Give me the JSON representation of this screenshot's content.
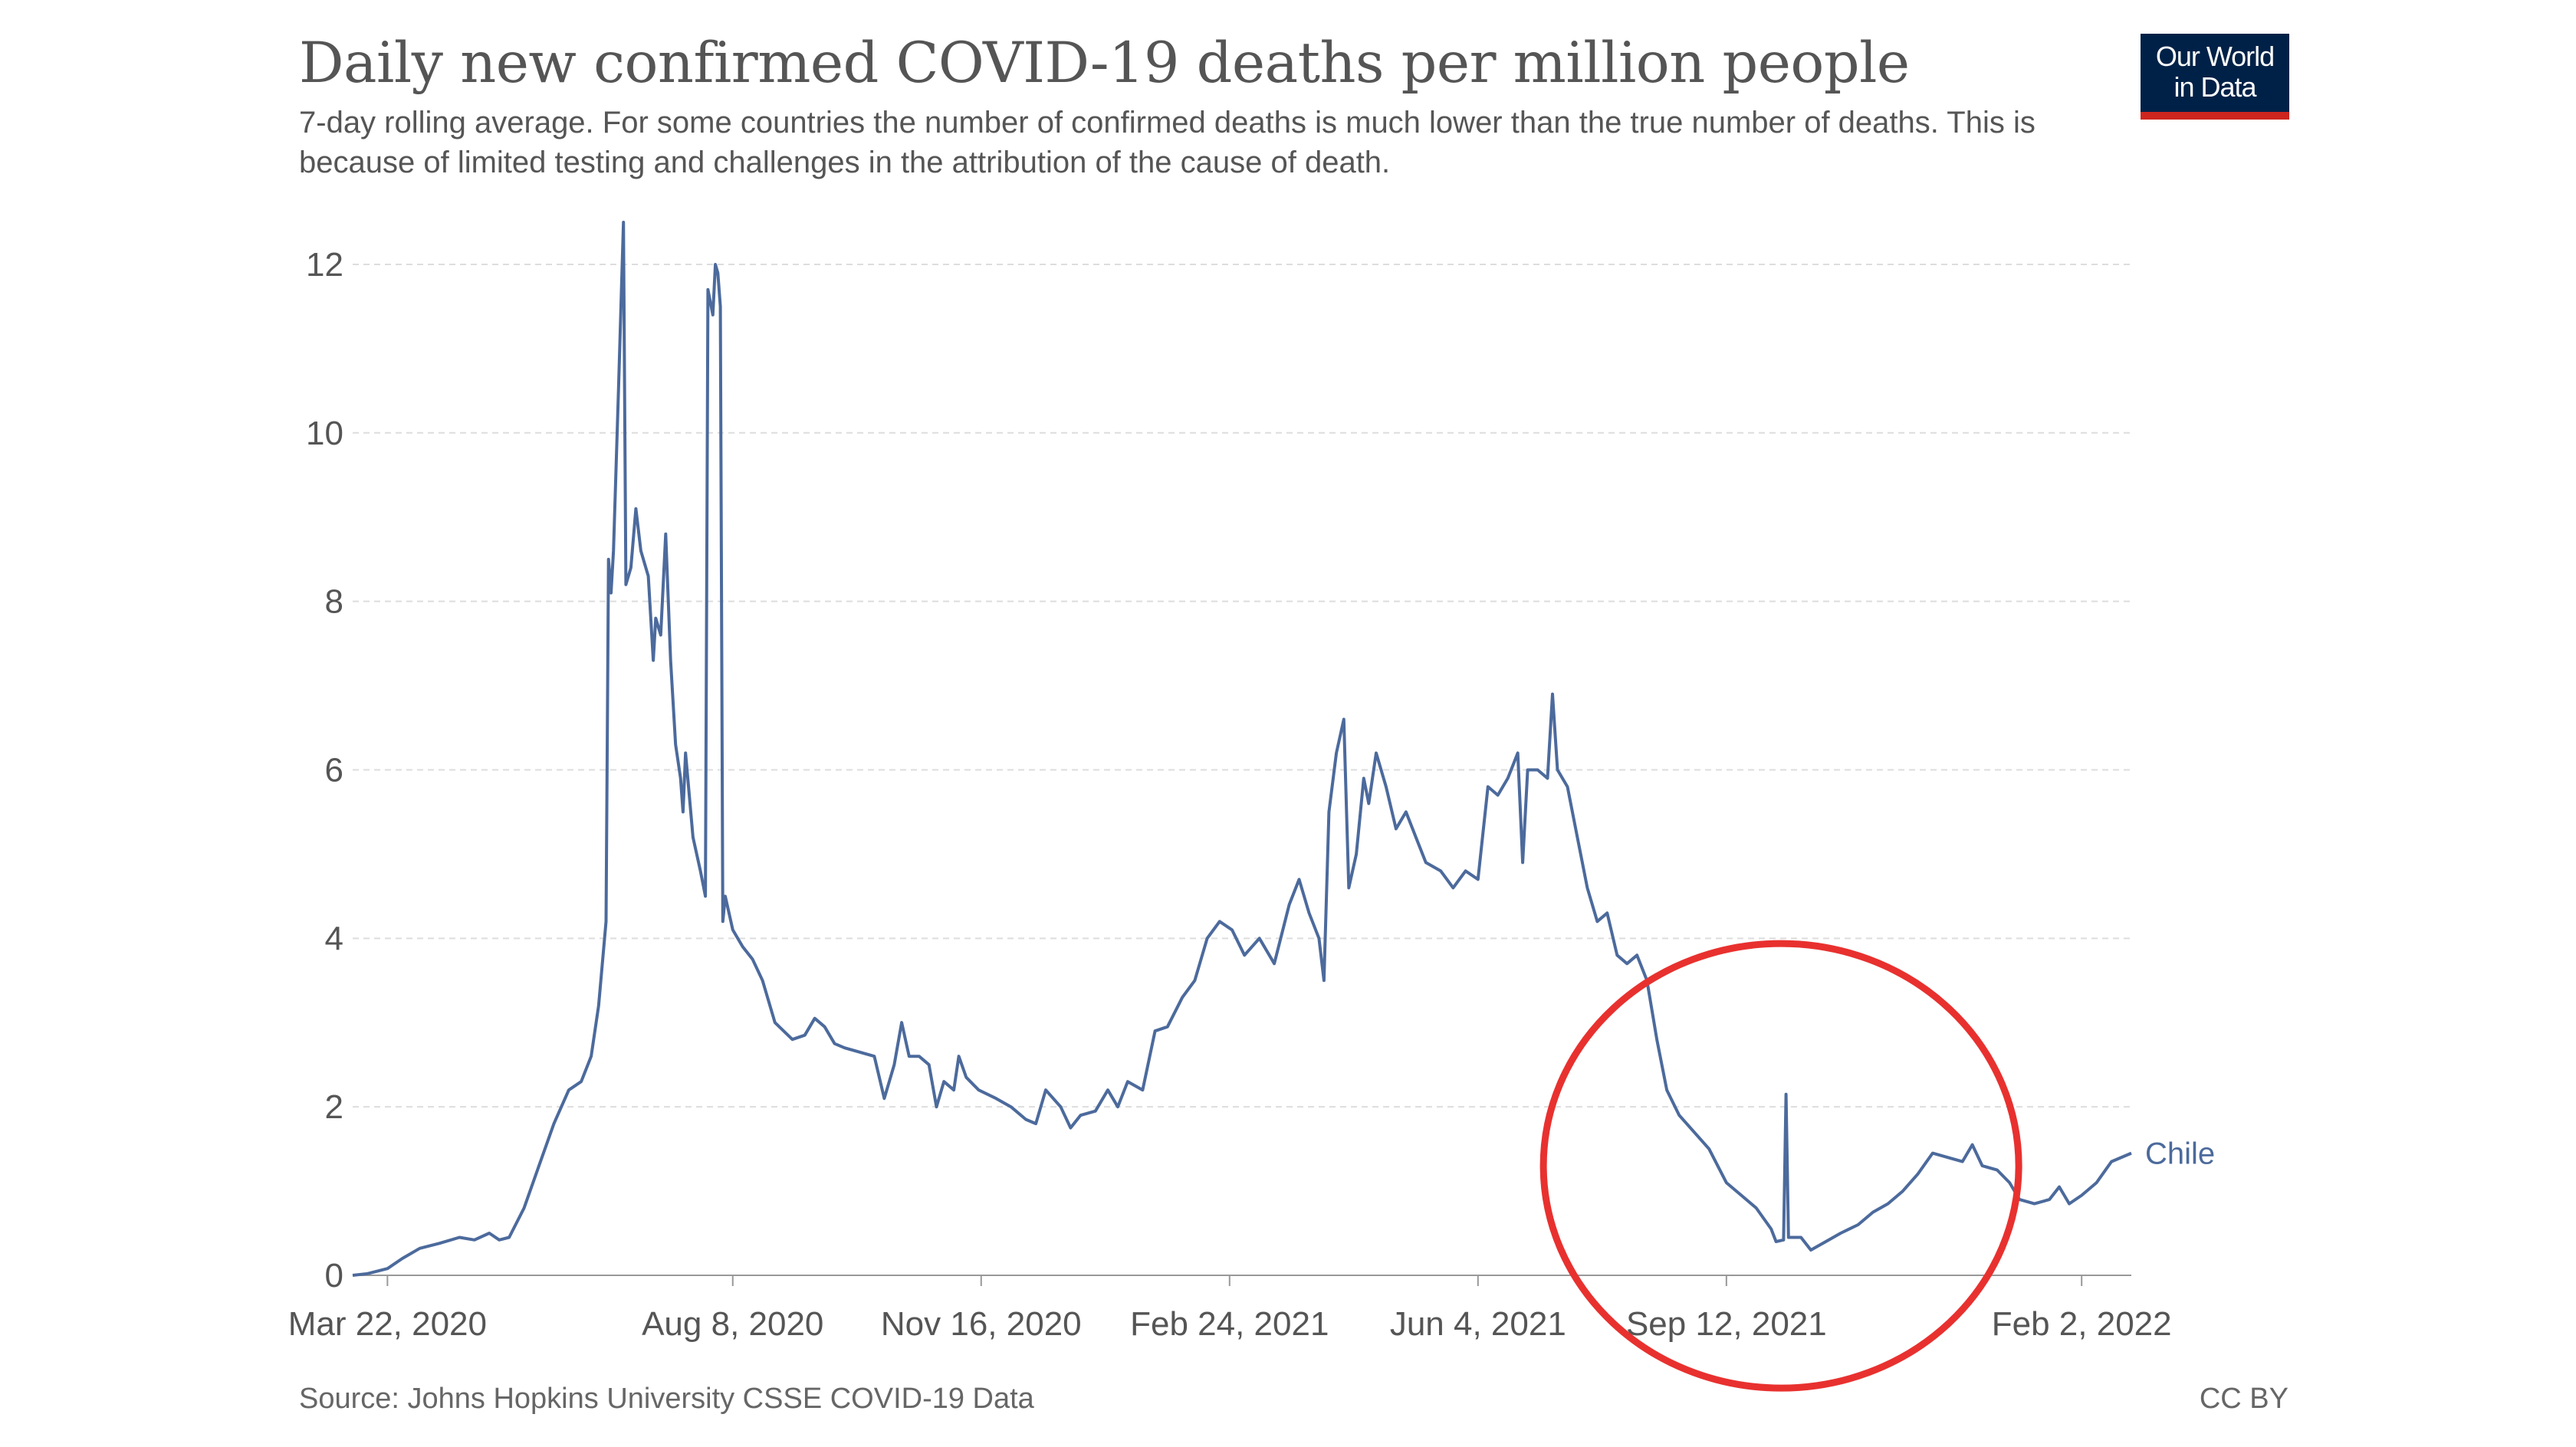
{
  "header": {
    "title": "Daily new confirmed COVID-19 deaths per million people",
    "subtitle": "7-day rolling average. For some countries the number of confirmed deaths is much lower than the true number of deaths. This is because of limited testing and challenges in the attribution of the cause of death.",
    "logo_line1": "Our World",
    "logo_line2": "in Data"
  },
  "footer": {
    "source": "Source: Johns Hopkins University CSSE COVID-19 Data",
    "license": "CC BY"
  },
  "colors": {
    "series": "#4c6a9c",
    "gridline": "#dddddd",
    "annotation_circle": "#e8312f",
    "logo_bg": "#002147",
    "logo_bar": "#ce261e"
  },
  "chart_data": {
    "type": "line",
    "title": "Daily new confirmed COVID-19 deaths per million people",
    "ylim": [
      0,
      12.5
    ],
    "yticks": [
      0,
      2,
      4,
      6,
      8,
      10,
      12
    ],
    "grid": "horizontal dashed",
    "x_range": [
      "2020-03-08",
      "2022-02-22"
    ],
    "xticks": [
      {
        "date": "2020-03-22",
        "label": "Mar 22, 2020"
      },
      {
        "date": "2020-08-08",
        "label": "Aug 8, 2020"
      },
      {
        "date": "2020-11-16",
        "label": "Nov 16, 2020"
      },
      {
        "date": "2021-02-24",
        "label": "Feb 24, 2021"
      },
      {
        "date": "2021-06-04",
        "label": "Jun 4, 2021"
      },
      {
        "date": "2021-09-12",
        "label": "Sep 12, 2021"
      },
      {
        "date": "2022-02-02",
        "label": "Feb 2, 2022"
      }
    ],
    "annotation": {
      "type": "circle",
      "note": "",
      "center_date": "2021-10-04",
      "center_value": 1.3
    },
    "series": [
      {
        "name": "Chile",
        "points": [
          [
            "2020-03-08",
            0
          ],
          [
            "2020-03-14",
            0.02
          ],
          [
            "2020-03-22",
            0.08
          ],
          [
            "2020-03-28",
            0.2
          ],
          [
            "2020-04-04",
            0.32
          ],
          [
            "2020-04-12",
            0.38
          ],
          [
            "2020-04-20",
            0.45
          ],
          [
            "2020-04-26",
            0.42
          ],
          [
            "2020-05-02",
            0.5
          ],
          [
            "2020-05-06",
            0.42
          ],
          [
            "2020-05-10",
            0.45
          ],
          [
            "2020-05-16",
            0.8
          ],
          [
            "2020-05-22",
            1.3
          ],
          [
            "2020-05-28",
            1.8
          ],
          [
            "2020-06-03",
            2.2
          ],
          [
            "2020-06-08",
            2.3
          ],
          [
            "2020-06-12",
            2.6
          ],
          [
            "2020-06-15",
            3.2
          ],
          [
            "2020-06-18",
            4.2
          ],
          [
            "2020-06-19",
            8.5
          ],
          [
            "2020-06-20",
            8.1
          ],
          [
            "2020-06-21",
            8.6
          ],
          [
            "2020-06-23",
            10.5
          ],
          [
            "2020-06-25",
            12.5
          ],
          [
            "2020-06-26",
            8.2
          ],
          [
            "2020-06-28",
            8.4
          ],
          [
            "2020-06-30",
            9.1
          ],
          [
            "2020-07-02",
            8.6
          ],
          [
            "2020-07-05",
            8.3
          ],
          [
            "2020-07-07",
            7.3
          ],
          [
            "2020-07-08",
            7.8
          ],
          [
            "2020-07-10",
            7.6
          ],
          [
            "2020-07-12",
            8.8
          ],
          [
            "2020-07-14",
            7.3
          ],
          [
            "2020-07-16",
            6.3
          ],
          [
            "2020-07-18",
            5.9
          ],
          [
            "2020-07-19",
            5.5
          ],
          [
            "2020-07-20",
            6.2
          ],
          [
            "2020-07-23",
            5.2
          ],
          [
            "2020-07-26",
            4.8
          ],
          [
            "2020-07-28",
            4.5
          ],
          [
            "2020-07-29",
            11.7
          ],
          [
            "2020-07-31",
            11.4
          ],
          [
            "2020-08-01",
            12.0
          ],
          [
            "2020-08-02",
            11.9
          ],
          [
            "2020-08-03",
            11.5
          ],
          [
            "2020-08-04",
            4.2
          ],
          [
            "2020-08-05",
            4.5
          ],
          [
            "2020-08-08",
            4.1
          ],
          [
            "2020-08-12",
            3.9
          ],
          [
            "2020-08-16",
            3.75
          ],
          [
            "2020-08-20",
            3.5
          ],
          [
            "2020-08-25",
            3.0
          ],
          [
            "2020-09-01",
            2.8
          ],
          [
            "2020-09-06",
            2.85
          ],
          [
            "2020-09-10",
            3.05
          ],
          [
            "2020-09-14",
            2.95
          ],
          [
            "2020-09-18",
            2.75
          ],
          [
            "2020-09-22",
            2.7
          ],
          [
            "2020-09-28",
            2.65
          ],
          [
            "2020-10-04",
            2.6
          ],
          [
            "2020-10-08",
            2.1
          ],
          [
            "2020-10-12",
            2.5
          ],
          [
            "2020-10-15",
            3.0
          ],
          [
            "2020-10-18",
            2.6
          ],
          [
            "2020-10-22",
            2.6
          ],
          [
            "2020-10-26",
            2.5
          ],
          [
            "2020-10-29",
            2.0
          ],
          [
            "2020-11-01",
            2.3
          ],
          [
            "2020-11-05",
            2.2
          ],
          [
            "2020-11-07",
            2.6
          ],
          [
            "2020-11-10",
            2.35
          ],
          [
            "2020-11-15",
            2.2
          ],
          [
            "2020-11-22",
            2.1
          ],
          [
            "2020-11-28",
            2.0
          ],
          [
            "2020-12-04",
            1.85
          ],
          [
            "2020-12-08",
            1.8
          ],
          [
            "2020-12-12",
            2.2
          ],
          [
            "2020-12-18",
            2.0
          ],
          [
            "2020-12-22",
            1.75
          ],
          [
            "2020-12-26",
            1.9
          ],
          [
            "2021-01-01",
            1.95
          ],
          [
            "2021-01-06",
            2.2
          ],
          [
            "2021-01-10",
            2.0
          ],
          [
            "2021-01-14",
            2.3
          ],
          [
            "2021-01-20",
            2.2
          ],
          [
            "2021-01-25",
            2.9
          ],
          [
            "2021-01-30",
            2.95
          ],
          [
            "2021-02-05",
            3.3
          ],
          [
            "2021-02-10",
            3.5
          ],
          [
            "2021-02-15",
            4.0
          ],
          [
            "2021-02-20",
            4.2
          ],
          [
            "2021-02-25",
            4.1
          ],
          [
            "2021-03-02",
            3.8
          ],
          [
            "2021-03-08",
            4.0
          ],
          [
            "2021-03-14",
            3.7
          ],
          [
            "2021-03-20",
            4.4
          ],
          [
            "2021-03-24",
            4.7
          ],
          [
            "2021-03-28",
            4.3
          ],
          [
            "2021-04-01",
            4.0
          ],
          [
            "2021-04-03",
            3.5
          ],
          [
            "2021-04-05",
            5.5
          ],
          [
            "2021-04-08",
            6.2
          ],
          [
            "2021-04-11",
            6.6
          ],
          [
            "2021-04-13",
            4.6
          ],
          [
            "2021-04-16",
            5.0
          ],
          [
            "2021-04-19",
            5.9
          ],
          [
            "2021-04-21",
            5.6
          ],
          [
            "2021-04-24",
            6.2
          ],
          [
            "2021-04-28",
            5.8
          ],
          [
            "2021-05-02",
            5.3
          ],
          [
            "2021-05-06",
            5.5
          ],
          [
            "2021-05-10",
            5.2
          ],
          [
            "2021-05-14",
            4.9
          ],
          [
            "2021-05-20",
            4.8
          ],
          [
            "2021-05-25",
            4.6
          ],
          [
            "2021-05-30",
            4.8
          ],
          [
            "2021-06-04",
            4.7
          ],
          [
            "2021-06-08",
            5.8
          ],
          [
            "2021-06-12",
            5.7
          ],
          [
            "2021-06-16",
            5.9
          ],
          [
            "2021-06-20",
            6.2
          ],
          [
            "2021-06-22",
            4.9
          ],
          [
            "2021-06-24",
            6.0
          ],
          [
            "2021-06-28",
            6.0
          ],
          [
            "2021-07-02",
            5.9
          ],
          [
            "2021-07-04",
            6.9
          ],
          [
            "2021-07-06",
            6.0
          ],
          [
            "2021-07-10",
            5.8
          ],
          [
            "2021-07-14",
            5.2
          ],
          [
            "2021-07-18",
            4.6
          ],
          [
            "2021-07-22",
            4.2
          ],
          [
            "2021-07-26",
            4.3
          ],
          [
            "2021-07-30",
            3.8
          ],
          [
            "2021-08-03",
            3.7
          ],
          [
            "2021-08-07",
            3.8
          ],
          [
            "2021-08-11",
            3.5
          ],
          [
            "2021-08-15",
            2.8
          ],
          [
            "2021-08-19",
            2.2
          ],
          [
            "2021-08-24",
            1.9
          ],
          [
            "2021-08-30",
            1.7
          ],
          [
            "2021-09-05",
            1.5
          ],
          [
            "2021-09-12",
            1.1
          ],
          [
            "2021-09-18",
            0.95
          ],
          [
            "2021-09-24",
            0.8
          ],
          [
            "2021-09-30",
            0.55
          ],
          [
            "2021-10-02",
            0.4
          ],
          [
            "2021-10-05",
            0.42
          ],
          [
            "2021-10-06",
            2.15
          ],
          [
            "2021-10-07",
            0.45
          ],
          [
            "2021-10-12",
            0.45
          ],
          [
            "2021-10-16",
            0.3
          ],
          [
            "2021-10-22",
            0.4
          ],
          [
            "2021-10-28",
            0.5
          ],
          [
            "2021-11-04",
            0.6
          ],
          [
            "2021-11-10",
            0.75
          ],
          [
            "2021-11-16",
            0.85
          ],
          [
            "2021-11-22",
            1.0
          ],
          [
            "2021-11-28",
            1.2
          ],
          [
            "2021-12-04",
            1.45
          ],
          [
            "2021-12-10",
            1.4
          ],
          [
            "2021-12-16",
            1.35
          ],
          [
            "2021-12-20",
            1.55
          ],
          [
            "2021-12-24",
            1.3
          ],
          [
            "2021-12-30",
            1.25
          ],
          [
            "2022-01-04",
            1.1
          ],
          [
            "2022-01-08",
            0.9
          ],
          [
            "2022-01-14",
            0.85
          ],
          [
            "2022-01-20",
            0.9
          ],
          [
            "2022-01-24",
            1.05
          ],
          [
            "2022-01-28",
            0.85
          ],
          [
            "2022-02-02",
            0.95
          ],
          [
            "2022-02-08",
            1.1
          ],
          [
            "2022-02-14",
            1.35
          ],
          [
            "2022-02-22",
            1.45
          ]
        ]
      }
    ]
  }
}
